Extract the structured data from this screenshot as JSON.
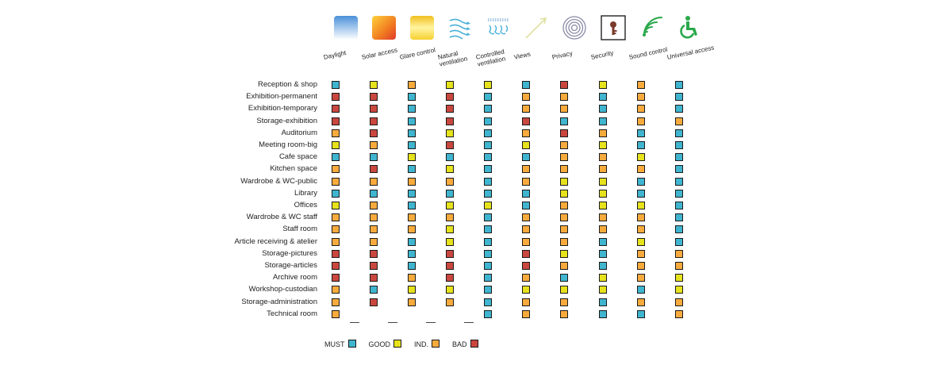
{
  "colors": {
    "MUST": "#3fb5cf",
    "GOOD": "#e6e21c",
    "IND": "#f8ab3c",
    "BAD": "#c9473f"
  },
  "columns": [
    {
      "key": "daylight",
      "label": "Daylight",
      "icon": "daylight-icon"
    },
    {
      "key": "solar",
      "label": "Solar access",
      "icon": "solar-access-icon"
    },
    {
      "key": "glare",
      "label": "Glare control",
      "icon": "glare-control-icon"
    },
    {
      "key": "natvent",
      "label": "Natural\nventilation",
      "icon": "natural-ventilation-icon"
    },
    {
      "key": "ctrlvent",
      "label": "Controlled\nventilation",
      "icon": "controlled-ventilation-icon"
    },
    {
      "key": "views",
      "label": "Views",
      "icon": "views-icon"
    },
    {
      "key": "privacy",
      "label": "Privacy",
      "icon": "privacy-icon"
    },
    {
      "key": "security",
      "label": "Security",
      "icon": "security-icon"
    },
    {
      "key": "sound",
      "label": "Sound control",
      "icon": "sound-control-icon"
    },
    {
      "key": "access",
      "label": "Universal access",
      "icon": "universal-access-icon"
    }
  ],
  "rows": [
    {
      "label": "Reception & shop",
      "values": [
        "MUST",
        "GOOD",
        "IND",
        "GOOD",
        "GOOD",
        "MUST",
        "BAD",
        "GOOD",
        "IND",
        "MUST"
      ]
    },
    {
      "label": "Exhibition-permanent",
      "values": [
        "BAD",
        "BAD",
        "MUST",
        "BAD",
        "MUST",
        "IND",
        "IND",
        "MUST",
        "IND",
        "MUST"
      ]
    },
    {
      "label": "Exhibition-temporary",
      "values": [
        "BAD",
        "BAD",
        "MUST",
        "BAD",
        "MUST",
        "IND",
        "IND",
        "MUST",
        "IND",
        "MUST"
      ]
    },
    {
      "label": "Storage-exhibition",
      "values": [
        "BAD",
        "BAD",
        "MUST",
        "BAD",
        "MUST",
        "BAD",
        "MUST",
        "MUST",
        "IND",
        "IND"
      ]
    },
    {
      "label": "Auditorium",
      "values": [
        "IND",
        "BAD",
        "MUST",
        "GOOD",
        "MUST",
        "IND",
        "BAD",
        "IND",
        "MUST",
        "MUST"
      ]
    },
    {
      "label": "Meeting room-big",
      "values": [
        "GOOD",
        "IND",
        "MUST",
        "BAD",
        "MUST",
        "GOOD",
        "IND",
        "GOOD",
        "MUST",
        "MUST"
      ]
    },
    {
      "label": "Cafe space",
      "values": [
        "MUST",
        "MUST",
        "GOOD",
        "MUST",
        "MUST",
        "MUST",
        "IND",
        "IND",
        "GOOD",
        "MUST"
      ]
    },
    {
      "label": "Kitchen space",
      "values": [
        "IND",
        "BAD",
        "MUST",
        "GOOD",
        "MUST",
        "IND",
        "IND",
        "IND",
        "IND",
        "MUST"
      ]
    },
    {
      "label": "Wardrobe & WC-public",
      "values": [
        "IND",
        "IND",
        "IND",
        "IND",
        "MUST",
        "IND",
        "GOOD",
        "GOOD",
        "MUST",
        "MUST"
      ]
    },
    {
      "label": "Library",
      "values": [
        "MUST",
        "MUST",
        "MUST",
        "MUST",
        "MUST",
        "MUST",
        "GOOD",
        "GOOD",
        "MUST",
        "MUST"
      ]
    },
    {
      "label": "Offices",
      "values": [
        "GOOD",
        "IND",
        "MUST",
        "GOOD",
        "GOOD",
        "MUST",
        "IND",
        "GOOD",
        "GOOD",
        "MUST"
      ]
    },
    {
      "label": "Wardrobe & WC staff",
      "values": [
        "IND",
        "IND",
        "IND",
        "IND",
        "MUST",
        "IND",
        "IND",
        "IND",
        "IND",
        "MUST"
      ]
    },
    {
      "label": "Staff room",
      "values": [
        "IND",
        "IND",
        "IND",
        "GOOD",
        "MUST",
        "IND",
        "IND",
        "IND",
        "IND",
        "MUST"
      ]
    },
    {
      "label": "Article receiving & atelier",
      "values": [
        "IND",
        "IND",
        "MUST",
        "GOOD",
        "MUST",
        "IND",
        "IND",
        "MUST",
        "GOOD",
        "MUST"
      ]
    },
    {
      "label": "Storage-pictures",
      "values": [
        "BAD",
        "BAD",
        "MUST",
        "BAD",
        "MUST",
        "BAD",
        "GOOD",
        "MUST",
        "IND",
        "IND"
      ]
    },
    {
      "label": "Storage-articles",
      "values": [
        "BAD",
        "BAD",
        "MUST",
        "BAD",
        "MUST",
        "BAD",
        "IND",
        "MUST",
        "IND",
        "IND"
      ]
    },
    {
      "label": "Archive room",
      "values": [
        "BAD",
        "BAD",
        "IND",
        "BAD",
        "MUST",
        "IND",
        "MUST",
        "GOOD",
        "IND",
        "GOOD"
      ]
    },
    {
      "label": "Workshop-custodian",
      "values": [
        "IND",
        "MUST",
        "GOOD",
        "GOOD",
        "MUST",
        "GOOD",
        "GOOD",
        "GOOD",
        "MUST",
        "GOOD"
      ]
    },
    {
      "label": "Storage-administration",
      "values": [
        "IND",
        "BAD",
        "IND",
        "IND",
        "MUST",
        "IND",
        "IND",
        "MUST",
        "IND",
        "IND"
      ]
    },
    {
      "label": "Technical room",
      "values": [
        "IND",
        "",
        "",
        "",
        "MUST",
        "IND",
        "IND",
        "MUST",
        "MUST",
        "IND"
      ]
    }
  ],
  "legend": [
    {
      "key": "MUST",
      "label": "MUST"
    },
    {
      "key": "GOOD",
      "label": "GOOD"
    },
    {
      "key": "IND",
      "label": "IND."
    },
    {
      "key": "BAD",
      "label": "BAD"
    }
  ]
}
